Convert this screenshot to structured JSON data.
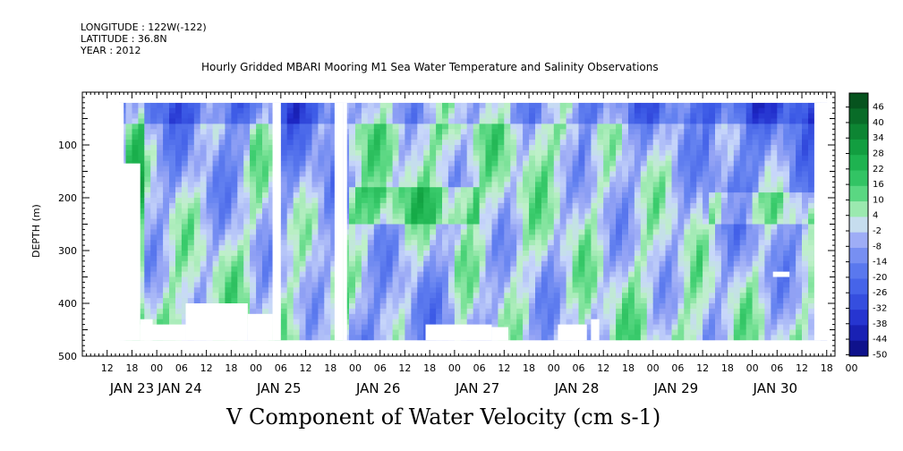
{
  "header": {
    "longitude": "LONGITUDE : 122W(-122)",
    "latitude": "LATITUDE : 36.8N",
    "year": "YEAR : 2012"
  },
  "chart_data": {
    "type": "heatmap",
    "title": "Hourly Gridded MBARI Mooring M1 Sea Water Temperature and Salinity Observations",
    "bottom_title": "V Component of Water Velocity (cm s-1)",
    "ylabel": "DEPTH (m)",
    "ylim": [
      500,
      0
    ],
    "y_ticks": [
      100,
      200,
      300,
      400,
      500
    ],
    "y_tick_labels": [
      "100",
      "200",
      "300",
      "400",
      "500"
    ],
    "x_hour_labels": [
      "12",
      "18",
      "00",
      "06",
      "12",
      "18",
      "00",
      "06",
      "12",
      "18",
      "00",
      "06",
      "12",
      "18",
      "00",
      "06",
      "12",
      "18",
      "00",
      "06",
      "12",
      "18",
      "00",
      "06",
      "12",
      "18",
      "00",
      "06",
      "12",
      "18",
      "00"
    ],
    "x_day_labels": [
      "JAN 23",
      "JAN 24",
      "JAN 25",
      "JAN 26",
      "JAN 27",
      "JAN 28",
      "JAN 29",
      "JAN 30"
    ],
    "time_range_hours": [
      0,
      182
    ],
    "colorbar": {
      "levels": [
        -50,
        -44,
        -38,
        -32,
        -26,
        -20,
        -14,
        -8,
        -2,
        4,
        10,
        16,
        22,
        28,
        34,
        40,
        46
      ],
      "labels": [
        "46",
        "40",
        "34",
        "28",
        "22",
        "16",
        "10",
        "4",
        "-2",
        "-8",
        "-14",
        "-20",
        "-26",
        "-32",
        "-38",
        "-44",
        "-50"
      ],
      "min": -50,
      "max": 52
    },
    "field_description_columns": [
      {
        "t_start": 10,
        "t_end": 14,
        "value_shallow": 14,
        "value_deep": 14,
        "depth_top": 20,
        "depth_bottom": 135
      },
      {
        "t_start": 14,
        "t_end": 40,
        "value_shallow": -10,
        "value_deep": 6
      },
      {
        "t_start": 48,
        "t_end": 62,
        "value_shallow": -14,
        "value_deep": 4
      },
      {
        "t_start": 64,
        "t_end": 90,
        "value_shallow": 8,
        "value_deep": -10
      },
      {
        "t_start": 90,
        "t_end": 120,
        "value_shallow": 6,
        "value_deep": -4
      },
      {
        "t_start": 120,
        "t_end": 150,
        "value_shallow": -6,
        "value_deep": 4
      },
      {
        "t_start": 150,
        "t_end": 182,
        "value_shallow": -16,
        "value_deep": 2
      }
    ]
  },
  "colors": {
    "frame": "#000000",
    "background": "#ffffff"
  }
}
